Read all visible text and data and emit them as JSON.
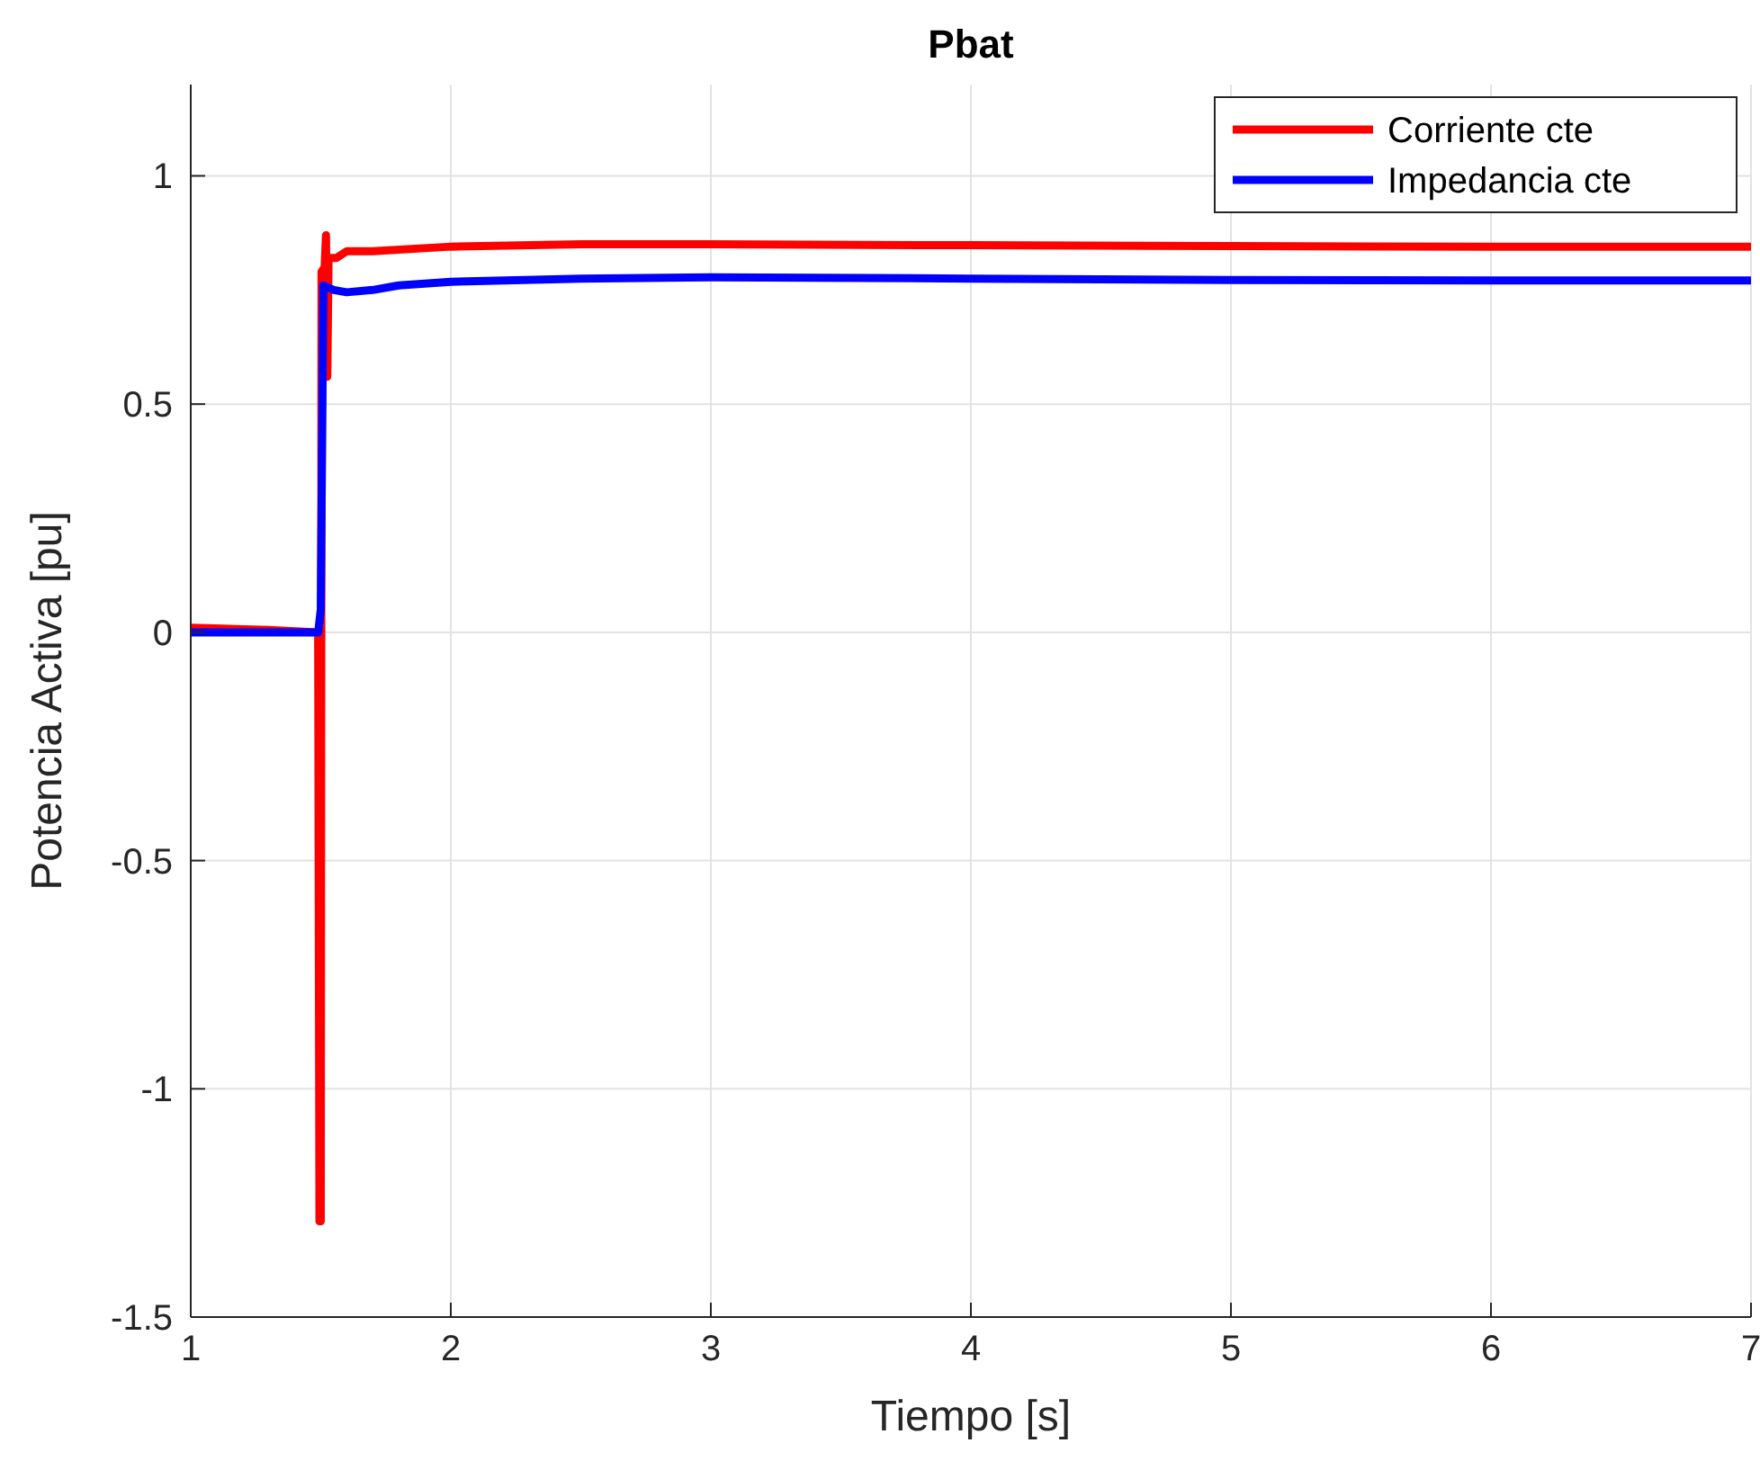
{
  "chart_data": {
    "type": "line",
    "title": "Pbat",
    "xlabel": "Tiempo [s]",
    "ylabel": "Potencia Activa [pu]",
    "xlim": [
      1,
      7
    ],
    "xticks": [
      1,
      2,
      3,
      4,
      5,
      6,
      7
    ],
    "ylim": [
      -1.5,
      1.2
    ],
    "yticks": [
      -1.5,
      -1,
      -0.5,
      0,
      0.5,
      1
    ],
    "grid": true,
    "legend": "top right",
    "line_style": "solid",
    "series": [
      {
        "name": "Corriente cte",
        "color": "#ff0000",
        "x": [
          1,
          1.3,
          1.49,
          1.495,
          1.5,
          1.503,
          1.515,
          1.52,
          1.525,
          1.53,
          1.56,
          1.6,
          1.7,
          2,
          2.5,
          3,
          4,
          5,
          6,
          7
        ],
        "values": [
          0.01,
          0.005,
          0,
          -1.29,
          -1.29,
          0.79,
          0.8,
          0.87,
          0.56,
          0.82,
          0.82,
          0.835,
          0.835,
          0.845,
          0.85,
          0.85,
          0.848,
          0.846,
          0.845,
          0.845
        ]
      },
      {
        "name": "Impedancia cte",
        "color": "#0000ff",
        "x": [
          1,
          1.49,
          1.5,
          1.51,
          1.55,
          1.6,
          1.7,
          1.8,
          2,
          2.5,
          3,
          4,
          5,
          6,
          7
        ],
        "values": [
          0,
          0,
          0.05,
          0.76,
          0.75,
          0.745,
          0.75,
          0.76,
          0.768,
          0.775,
          0.778,
          0.775,
          0.772,
          0.771,
          0.771
        ]
      }
    ]
  }
}
